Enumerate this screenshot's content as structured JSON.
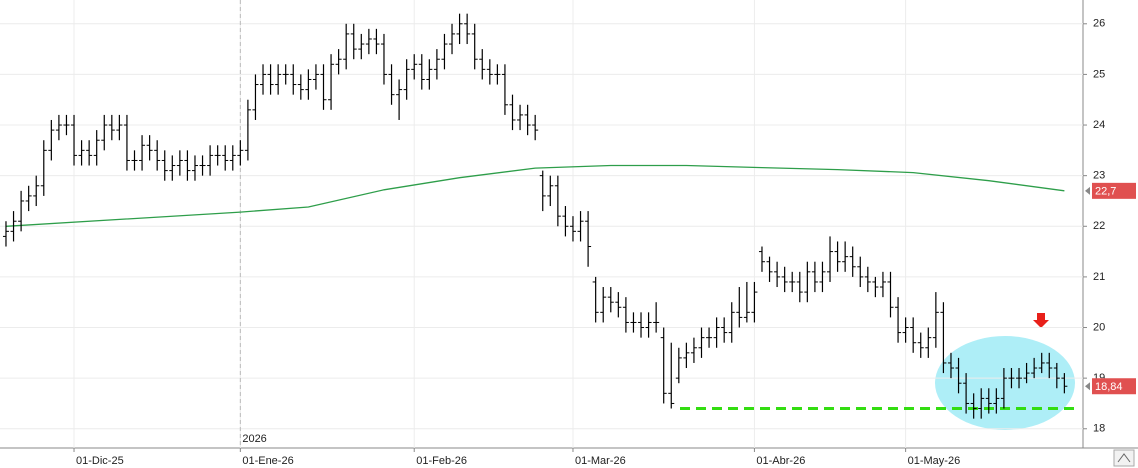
{
  "chart_data": {
    "type": "ohlc",
    "color": "#000000",
    "categories": [
      null,
      null,
      null,
      null,
      null,
      null,
      null,
      null,
      null,
      "01-Dic-25",
      null,
      null,
      null,
      null,
      null,
      null,
      null,
      null,
      null,
      null,
      null,
      null,
      null,
      null,
      null,
      null,
      null,
      null,
      null,
      null,
      null,
      "01-Ene-26",
      null,
      null,
      null,
      null,
      null,
      null,
      null,
      null,
      null,
      null,
      null,
      null,
      null,
      null,
      null,
      null,
      null,
      null,
      null,
      null,
      null,
      null,
      "01-Feb-26",
      null,
      null,
      null,
      null,
      null,
      null,
      null,
      null,
      null,
      null,
      null,
      null,
      null,
      null,
      null,
      null,
      null,
      null,
      null,
      null,
      "01-Mar-26",
      null,
      null,
      null,
      null,
      null,
      null,
      null,
      null,
      null,
      null,
      null,
      null,
      null,
      null,
      null,
      null,
      null,
      null,
      null,
      null,
      null,
      null,
      null,
      "01-Abr-26",
      null,
      null,
      null,
      null,
      null,
      null,
      null,
      null,
      null,
      null,
      null,
      null,
      null,
      null,
      null,
      null,
      null,
      null,
      null,
      "01-May-26",
      null,
      null,
      null,
      null,
      null,
      null,
      null,
      null,
      null,
      null,
      null,
      null,
      null,
      null,
      null,
      null,
      null,
      null,
      null,
      null,
      null
    ],
    "open": [
      21.8,
      21.9,
      22.1,
      22.5,
      22.6,
      22.8,
      23.5,
      23.9,
      24.0,
      24.0,
      23.4,
      23.5,
      23.4,
      23.7,
      24.0,
      23.9,
      24.0,
      23.3,
      23.3,
      23.6,
      23.5,
      23.3,
      23.1,
      23.2,
      23.3,
      23.1,
      23.2,
      23.2,
      23.4,
      23.4,
      23.3,
      23.4,
      23.5,
      24.3,
      24.8,
      25.0,
      24.8,
      25.0,
      25.0,
      24.8,
      24.7,
      24.9,
      25.0,
      24.5,
      25.2,
      25.3,
      25.8,
      25.5,
      25.6,
      25.7,
      25.6,
      25.0,
      24.6,
      24.7,
      25.1,
      25.2,
      24.9,
      25.1,
      25.3,
      25.6,
      25.8,
      26.0,
      25.8,
      25.3,
      25.1,
      25.0,
      25.0,
      24.4,
      24.1,
      24.2,
      24.0,
      23.0,
      22.6,
      22.8,
      22.2,
      22.0,
      21.9,
      22.1,
      20.9,
      20.3,
      20.6,
      20.5,
      20.4,
      20.1,
      20.1,
      20.0,
      20.1,
      19.8,
      18.7,
      19.0,
      19.4,
      19.5,
      19.6,
      19.8,
      19.8,
      20.0,
      19.9,
      20.3,
      20.2,
      20.3,
      21.5,
      21.3,
      21.1,
      21.0,
      20.9,
      20.9,
      20.7,
      21.1,
      20.9,
      21.1,
      21.5,
      21.3,
      21.4,
      21.2,
      21.0,
      20.9,
      20.8,
      20.9,
      20.4,
      19.9,
      20.0,
      19.7,
      19.6,
      19.8,
      20.3,
      19.3,
      19.2,
      18.9,
      18.5,
      18.4,
      18.6,
      18.5,
      18.6,
      19.0,
      19.0,
      19.0,
      19.1,
      19.2,
      19.3,
      19.2,
      19.0
    ],
    "high": [
      22.1,
      22.3,
      22.7,
      22.8,
      23.0,
      23.7,
      24.1,
      24.2,
      24.2,
      24.2,
      23.7,
      23.7,
      23.9,
      24.2,
      24.2,
      24.2,
      24.2,
      23.5,
      23.8,
      23.8,
      23.7,
      23.5,
      23.4,
      23.5,
      23.5,
      23.4,
      23.4,
      23.6,
      23.6,
      23.6,
      23.6,
      23.7,
      24.5,
      25.0,
      25.2,
      25.2,
      25.2,
      25.2,
      25.2,
      25.0,
      25.1,
      25.2,
      25.2,
      25.4,
      25.5,
      26.0,
      26.0,
      25.8,
      25.9,
      25.9,
      25.8,
      25.2,
      24.9,
      25.3,
      25.4,
      25.4,
      25.3,
      25.5,
      25.8,
      26.0,
      26.2,
      26.2,
      26.0,
      25.5,
      25.3,
      25.2,
      25.2,
      24.6,
      24.4,
      24.4,
      24.2,
      23.1,
      23.0,
      23.0,
      22.4,
      22.2,
      22.3,
      22.3,
      21.0,
      20.8,
      20.8,
      20.7,
      20.6,
      20.3,
      20.3,
      20.3,
      20.5,
      20.0,
      19.7,
      19.6,
      19.7,
      19.8,
      20.0,
      20.0,
      20.2,
      20.2,
      20.5,
      20.8,
      20.9,
      20.9,
      21.6,
      21.4,
      21.3,
      21.2,
      21.1,
      21.1,
      21.3,
      21.3,
      21.3,
      21.8,
      21.7,
      21.7,
      21.6,
      21.4,
      21.2,
      21.0,
      21.1,
      21.1,
      20.6,
      20.2,
      20.2,
      19.9,
      20.0,
      20.7,
      20.5,
      19.5,
      19.4,
      19.1,
      18.7,
      18.8,
      18.8,
      18.8,
      19.2,
      19.2,
      19.2,
      19.3,
      19.4,
      19.5,
      19.5,
      19.3,
      19.1
    ],
    "low": [
      21.6,
      21.7,
      21.9,
      22.3,
      22.4,
      22.6,
      23.3,
      23.7,
      23.8,
      23.2,
      23.2,
      23.2,
      23.2,
      23.5,
      23.7,
      23.7,
      23.1,
      23.1,
      23.1,
      23.3,
      23.1,
      22.9,
      22.9,
      23.0,
      22.9,
      22.9,
      23.0,
      23.0,
      23.2,
      23.1,
      23.1,
      23.2,
      23.3,
      24.1,
      24.6,
      24.6,
      24.6,
      24.8,
      24.6,
      24.5,
      24.5,
      24.7,
      24.3,
      24.3,
      25.0,
      25.1,
      25.3,
      25.3,
      25.4,
      25.4,
      24.8,
      24.4,
      24.1,
      24.5,
      24.9,
      24.7,
      24.7,
      24.9,
      25.1,
      25.4,
      25.6,
      25.6,
      25.1,
      24.9,
      24.8,
      24.8,
      24.2,
      23.9,
      23.9,
      23.8,
      23.7,
      22.3,
      22.4,
      22.0,
      21.8,
      21.7,
      21.7,
      21.2,
      20.1,
      20.1,
      20.3,
      20.2,
      19.9,
      19.9,
      19.8,
      19.8,
      19.9,
      18.5,
      18.4,
      18.9,
      19.2,
      19.3,
      19.4,
      19.6,
      19.6,
      19.7,
      19.7,
      20.0,
      20.1,
      20.1,
      21.1,
      20.9,
      20.8,
      20.7,
      20.7,
      20.5,
      20.5,
      20.7,
      20.7,
      20.9,
      21.1,
      21.1,
      21.0,
      20.8,
      20.7,
      20.6,
      20.6,
      20.2,
      19.7,
      19.7,
      19.5,
      19.4,
      19.4,
      19.6,
      19.1,
      19.0,
      18.7,
      18.3,
      18.2,
      18.2,
      18.3,
      18.3,
      18.4,
      18.8,
      18.8,
      18.9,
      19.0,
      19.1,
      19.0,
      18.8,
      18.7
    ],
    "close": [
      21.9,
      22.1,
      22.5,
      22.6,
      22.8,
      23.5,
      23.9,
      24.0,
      24.0,
      23.4,
      23.5,
      23.4,
      23.7,
      24.0,
      23.9,
      24.0,
      23.3,
      23.3,
      23.6,
      23.5,
      23.3,
      23.1,
      23.2,
      23.3,
      23.1,
      23.2,
      23.2,
      23.4,
      23.4,
      23.3,
      23.4,
      23.5,
      24.3,
      24.8,
      25.0,
      24.8,
      25.0,
      25.0,
      24.8,
      24.7,
      24.9,
      25.0,
      24.5,
      25.2,
      25.3,
      25.8,
      25.5,
      25.6,
      25.7,
      25.6,
      25.0,
      24.6,
      24.7,
      25.1,
      25.2,
      24.9,
      25.1,
      25.3,
      25.6,
      25.8,
      26.0,
      25.8,
      25.3,
      25.1,
      25.0,
      25.0,
      24.4,
      24.1,
      24.2,
      24.0,
      23.9,
      22.6,
      22.8,
      22.2,
      22.0,
      21.9,
      22.1,
      21.6,
      20.3,
      20.6,
      20.5,
      20.4,
      20.1,
      20.1,
      20.0,
      20.1,
      20.1,
      18.7,
      18.5,
      19.4,
      19.5,
      19.6,
      19.8,
      19.8,
      20.0,
      19.9,
      20.3,
      20.2,
      20.3,
      20.7,
      21.3,
      21.1,
      21.0,
      20.9,
      20.9,
      20.7,
      21.1,
      20.9,
      21.1,
      21.5,
      21.3,
      21.4,
      21.2,
      21.0,
      20.9,
      20.8,
      20.9,
      20.4,
      19.9,
      20.0,
      19.7,
      19.6,
      19.8,
      20.3,
      19.3,
      19.2,
      18.9,
      18.5,
      18.4,
      18.6,
      18.5,
      18.6,
      19.0,
      19.0,
      19.0,
      19.1,
      19.2,
      19.3,
      19.2,
      19.0,
      18.84
    ],
    "close_label": "18,84",
    "label_color": "#e05050",
    "ma": {
      "color": "#2e9e4a",
      "x": [
        0,
        31,
        40,
        50,
        60,
        70,
        80,
        90,
        100,
        110,
        120,
        130,
        140
      ],
      "values": [
        22.0,
        22.28,
        22.38,
        22.72,
        22.96,
        23.15,
        23.2,
        23.2,
        23.16,
        23.12,
        23.06,
        22.9,
        22.7
      ],
      "value_label": "22,7"
    },
    "support_level": 18.4,
    "support_color": "#33dd11",
    "year_label": "2026",
    "ylim": [
      17.62,
      26.47
    ],
    "yticks": [
      18,
      19,
      20,
      21,
      22,
      23,
      24,
      25,
      26
    ],
    "grid": true
  }
}
